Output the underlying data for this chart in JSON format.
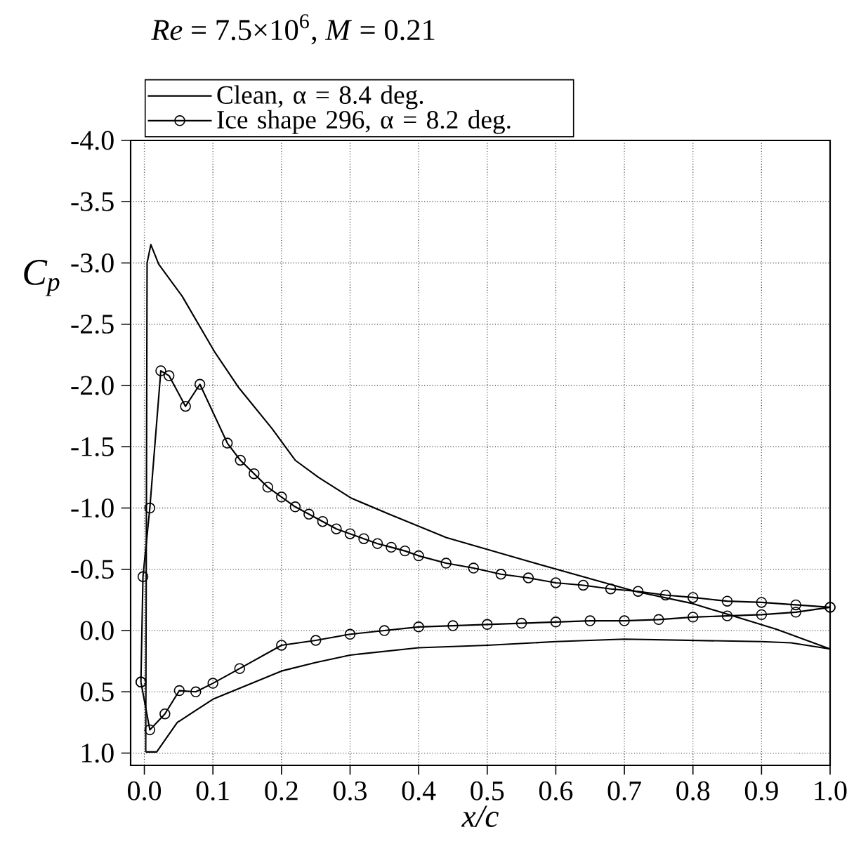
{
  "chart_data": {
    "type": "line",
    "title": "*Re* = 7.5×10$^{6}$,  *M* = 0.21",
    "xlabel": "x/c",
    "ylabel": "C$_{p}$",
    "xlim": [
      -0.02,
      1.0
    ],
    "ylim": [
      1.1,
      -4.0
    ],
    "xticks": [
      {
        "value": 0,
        "label": "0.0"
      },
      0.1,
      0.2,
      0.3,
      0.4,
      0.5,
      0.6,
      0.7,
      0.8,
      0.9,
      {
        "value": 1,
        "label": "1.0"
      }
    ],
    "yticks": [
      {
        "value": -4,
        "label": "-4.0"
      },
      -3.5,
      {
        "value": -3,
        "label": "-3.0"
      },
      -2.5,
      {
        "value": -2,
        "label": "-2.0"
      },
      -1.5,
      {
        "value": -1,
        "label": "-1.0"
      },
      -0.5,
      {
        "value": 0,
        "label": "0.0"
      },
      0.5,
      {
        "value": 1,
        "label": "1.0"
      }
    ],
    "grid": true,
    "legend": "top",
    "series": [
      {
        "name": "Clean, α = 8.4 deg.",
        "color": "#000000",
        "marker": "none",
        "x": [
          0.002,
          0.004,
          0.0095,
          0.021,
          0.055,
          0.103,
          0.138,
          0.186,
          0.22,
          0.254,
          0.302,
          0.357,
          0.44,
          0.557,
          0.716,
          0.8,
          0.922,
          1.0
        ],
        "values": [
          0.99,
          -3.0,
          -3.15,
          -2.99,
          -2.73,
          -2.27,
          -1.98,
          -1.65,
          -1.39,
          -1.25,
          -1.08,
          -0.95,
          -0.76,
          -0.57,
          -0.32,
          -0.22,
          -0.01,
          0.15
        ]
      },
      {
        "color": "#000000",
        "marker": "none",
        "x": [
          0.002,
          0.018,
          0.048,
          0.1,
          0.2,
          0.25,
          0.3,
          0.4,
          0.5,
          0.6,
          0.7,
          0.8,
          0.9,
          0.943,
          1.0
        ],
        "values": [
          0.99,
          0.99,
          0.75,
          0.56,
          0.33,
          0.26,
          0.2,
          0.14,
          0.12,
          0.09,
          0.07,
          0.08,
          0.09,
          0.1,
          0.15
        ]
      },
      {
        "name": "Ice shape 296, α = 8.2 deg.",
        "color": "#000000",
        "marker": "circle",
        "x": [
          -0.005,
          -0.002,
          0.008,
          0.024,
          0.036,
          0.06,
          0.081,
          0.121,
          0.14,
          0.16,
          0.18,
          0.2,
          0.22,
          0.24,
          0.26,
          0.28,
          0.3,
          0.32,
          0.34,
          0.36,
          0.38,
          0.4,
          0.44,
          0.48,
          0.52,
          0.56,
          0.6,
          0.64,
          0.68,
          0.72,
          0.76,
          0.8,
          0.85,
          0.9,
          0.95,
          1.0
        ],
        "values": [
          0.42,
          -0.44,
          -1.0,
          -2.12,
          -2.08,
          -1.83,
          -2.01,
          -1.53,
          -1.39,
          -1.28,
          -1.17,
          -1.09,
          -1.01,
          -0.95,
          -0.89,
          -0.83,
          -0.79,
          -0.75,
          -0.71,
          -0.68,
          -0.65,
          -0.61,
          -0.55,
          -0.51,
          -0.46,
          -0.43,
          -0.39,
          -0.37,
          -0.34,
          -0.32,
          -0.29,
          -0.27,
          -0.24,
          -0.23,
          -0.21,
          -0.19
        ]
      },
      {
        "color": "#000000",
        "marker": "circle",
        "x": [
          -0.005,
          0.008,
          0.03,
          0.051,
          0.075,
          0.1,
          0.139,
          0.2,
          0.25,
          0.3,
          0.35,
          0.4,
          0.45,
          0.5,
          0.55,
          0.6,
          0.65,
          0.7,
          0.75,
          0.8,
          0.85,
          0.9,
          0.95,
          1.0
        ],
        "values": [
          0.42,
          0.81,
          0.68,
          0.49,
          0.5,
          0.43,
          0.31,
          0.12,
          0.08,
          0.03,
          0.0,
          -0.03,
          -0.04,
          -0.05,
          -0.06,
          -0.07,
          -0.08,
          -0.08,
          -0.09,
          -0.11,
          -0.12,
          -0.13,
          -0.15,
          -0.19
        ]
      }
    ]
  }
}
